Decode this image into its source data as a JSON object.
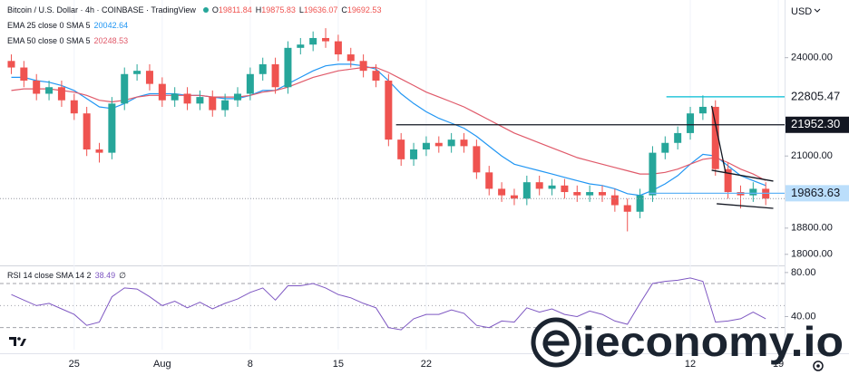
{
  "chart_data": [
    {
      "type": "candlestick",
      "title": "Bitcoin / U.S. Dollar · 4h · COINBASE · TradingView",
      "ohlc_labels": [
        "O",
        "H",
        "L",
        "C"
      ],
      "ohlc_values": [
        19811.84,
        19875.83,
        19636.07,
        19692.53
      ],
      "ohlc_color": "#ef5350",
      "currency": "USD",
      "x": [
        -5,
        -4,
        -3,
        -2,
        -1,
        0,
        1,
        2,
        3,
        4,
        5,
        6,
        7,
        8,
        9,
        10,
        11,
        12,
        13,
        14,
        15,
        16,
        17,
        18,
        19,
        20,
        21,
        22,
        23,
        24,
        25,
        26,
        27,
        28,
        29,
        30,
        31,
        32,
        33,
        34,
        35,
        36,
        37,
        38,
        39,
        40,
        41,
        42,
        43,
        44,
        45,
        46,
        47,
        48,
        49,
        50,
        51,
        52,
        53,
        54,
        55
      ],
      "open": [
        23900,
        23700,
        23300,
        22900,
        23100,
        22700,
        22300,
        21200,
        21100,
        22600,
        23500,
        23600,
        23200,
        22700,
        22900,
        22600,
        22800,
        22400,
        22700,
        22900,
        23500,
        23800,
        23100,
        24300,
        24400,
        24600,
        24500,
        24100,
        23900,
        23600,
        23300,
        21500,
        20900,
        21200,
        21400,
        21300,
        21500,
        21300,
        20500,
        20000,
        19800,
        19700,
        20200,
        20000,
        20100,
        19900,
        19800,
        19900,
        19800,
        19500,
        19300,
        19800,
        21100,
        21400,
        21700,
        22300,
        22500,
        20600,
        19900,
        19800,
        20000
      ],
      "high": [
        24100,
        23900,
        23500,
        23300,
        23300,
        22900,
        22500,
        21400,
        22800,
        23700,
        23800,
        23800,
        23400,
        23100,
        23100,
        23000,
        23000,
        22900,
        23100,
        23700,
        24000,
        24000,
        24500,
        24600,
        24800,
        24900,
        24700,
        24300,
        24100,
        23800,
        23500,
        21700,
        21400,
        21600,
        21600,
        21700,
        21700,
        21500,
        20700,
        20200,
        20000,
        20400,
        20400,
        20300,
        20300,
        20100,
        20100,
        20100,
        20000,
        19700,
        20000,
        21300,
        21600,
        21900,
        22500,
        22850,
        22700,
        20800,
        20100,
        20200,
        20200
      ],
      "low": [
        23500,
        23100,
        22700,
        22700,
        22500,
        22100,
        21000,
        20800,
        20900,
        22400,
        23300,
        23000,
        22500,
        22500,
        22400,
        22400,
        22200,
        22200,
        22500,
        22700,
        23300,
        22900,
        22900,
        24100,
        24200,
        24300,
        23900,
        23700,
        23400,
        23100,
        21300,
        20700,
        20700,
        21000,
        21100,
        21100,
        21100,
        20300,
        19800,
        19600,
        19500,
        19500,
        19800,
        19800,
        19700,
        19600,
        19600,
        19600,
        19300,
        18700,
        19100,
        19600,
        20900,
        21200,
        21500,
        22100,
        20400,
        19700,
        19400,
        19600,
        19500
      ],
      "close": [
        23700,
        23300,
        22900,
        23100,
        22700,
        22300,
        21200,
        21100,
        22600,
        23500,
        23600,
        23200,
        22700,
        22900,
        22600,
        22800,
        22400,
        22700,
        22900,
        23500,
        23800,
        23100,
        24300,
        24400,
        24600,
        24500,
        24100,
        23900,
        23600,
        23300,
        21500,
        20900,
        21200,
        21400,
        21300,
        21500,
        21300,
        20500,
        20000,
        19800,
        19700,
        20200,
        20000,
        20100,
        19900,
        19800,
        19900,
        19800,
        19500,
        19300,
        19800,
        21100,
        21400,
        21700,
        22300,
        22500,
        20600,
        19900,
        19800,
        20000,
        19700
      ],
      "up_color": "#26a69a",
      "down_color": "#ef5350",
      "series": [
        {
          "name": "EMA 25 close 0 SMA 5",
          "legend_value": 20042.64,
          "color": "#2196f3",
          "values": [
            23400,
            23400,
            23300,
            23250,
            23150,
            23000,
            22750,
            22500,
            22450,
            22600,
            22800,
            22900,
            22900,
            22900,
            22850,
            22850,
            22800,
            22750,
            22750,
            22850,
            23000,
            23000,
            23200,
            23400,
            23600,
            23750,
            23800,
            23800,
            23750,
            23650,
            23300,
            22900,
            22600,
            22350,
            22150,
            22000,
            21850,
            21600,
            21300,
            21000,
            20750,
            20650,
            20550,
            20450,
            20350,
            20250,
            20150,
            20100,
            20000,
            19850,
            19800,
            19950,
            20150,
            20400,
            20750,
            21050,
            21000,
            20700,
            20400,
            20250,
            20100
          ]
        },
        {
          "name": "EMA 50 close 0 SMA 5",
          "legend_value": 20248.53,
          "color": "#e05a6a",
          "values": [
            23000,
            23050,
            23050,
            23050,
            23000,
            22950,
            22850,
            22700,
            22650,
            22700,
            22800,
            22850,
            22850,
            22850,
            22850,
            22850,
            22800,
            22800,
            22800,
            22850,
            22950,
            23000,
            23100,
            23250,
            23400,
            23500,
            23600,
            23650,
            23700,
            23700,
            23550,
            23350,
            23150,
            22950,
            22800,
            22650,
            22500,
            22300,
            22100,
            21900,
            21700,
            21550,
            21400,
            21250,
            21100,
            20950,
            20850,
            20750,
            20650,
            20550,
            20450,
            20450,
            20500,
            20600,
            20750,
            20900,
            20950,
            20800,
            20600,
            20450,
            20250
          ]
        }
      ],
      "price_lines": [
        {
          "value": 22805.47,
          "label": "22805.47",
          "from": 47.1,
          "color": "#00bcd4",
          "box": "#ffffff",
          "text_color": "#131722"
        },
        {
          "value": 21952.3,
          "label": "21952.30",
          "from": 25.6,
          "color": "#131722",
          "box": "#131722",
          "text_color": "#ffffff"
        },
        {
          "value": 19863.63,
          "label": "19863.63",
          "from": 45.7,
          "color": "#64b5f6",
          "box": "#bbdefb",
          "text_color": "#131722"
        }
      ],
      "trend_lines": [
        {
          "x": [
            50.7,
            51.8
          ],
          "y": [
            22529,
            20510
          ]
        },
        {
          "x": [
            50.7,
            55.6
          ],
          "y": [
            20566,
            20234
          ]
        },
        {
          "x": [
            51.1,
            55.6
          ],
          "y": [
            19543,
            19404
          ]
        }
      ],
      "xlim": [
        -5.9,
        56.5
      ],
      "xticks": [
        {
          "value": 0,
          "label": "25"
        },
        {
          "value": 7,
          "label": "Aug"
        },
        {
          "value": 14,
          "label": "8"
        },
        {
          "value": 21,
          "label": "15"
        },
        {
          "value": 28,
          "label": "22"
        },
        {
          "value": 49,
          "label": "12"
        },
        {
          "value": 56,
          "label": "19"
        }
      ],
      "ylim": [
        17690,
        25760
      ],
      "yticks": [
        {
          "value": 24000,
          "label": "24000.00"
        },
        {
          "value": 21000,
          "label": "21000.00"
        },
        {
          "value": 18800,
          "label": "18800.00"
        },
        {
          "value": 18000,
          "label": "18000.00"
        }
      ]
    },
    {
      "type": "line",
      "title": "RSI 14 close SMA 14 2",
      "legend_value": 38.49,
      "legend_extra": "∅",
      "color": "#7e57c2",
      "values": [
        60,
        55,
        50,
        52,
        47,
        42,
        32,
        35,
        58,
        66,
        65,
        58,
        50,
        54,
        48,
        53,
        47,
        52,
        56,
        62,
        66,
        55,
        68,
        68,
        70,
        66,
        60,
        57,
        52,
        48,
        30,
        28,
        38,
        42,
        42,
        46,
        43,
        32,
        30,
        36,
        35,
        48,
        44,
        47,
        42,
        40,
        45,
        42,
        36,
        33,
        52,
        70,
        72,
        73,
        75,
        72,
        35,
        36,
        38,
        44,
        38
      ],
      "levels": [
        70,
        50,
        30
      ],
      "ylim": [
        10,
        84
      ],
      "yticks": [
        {
          "value": 80,
          "label": "80.00"
        },
        {
          "value": 40,
          "label": "40.00"
        }
      ]
    }
  ],
  "watermark": "ieconomy.io"
}
